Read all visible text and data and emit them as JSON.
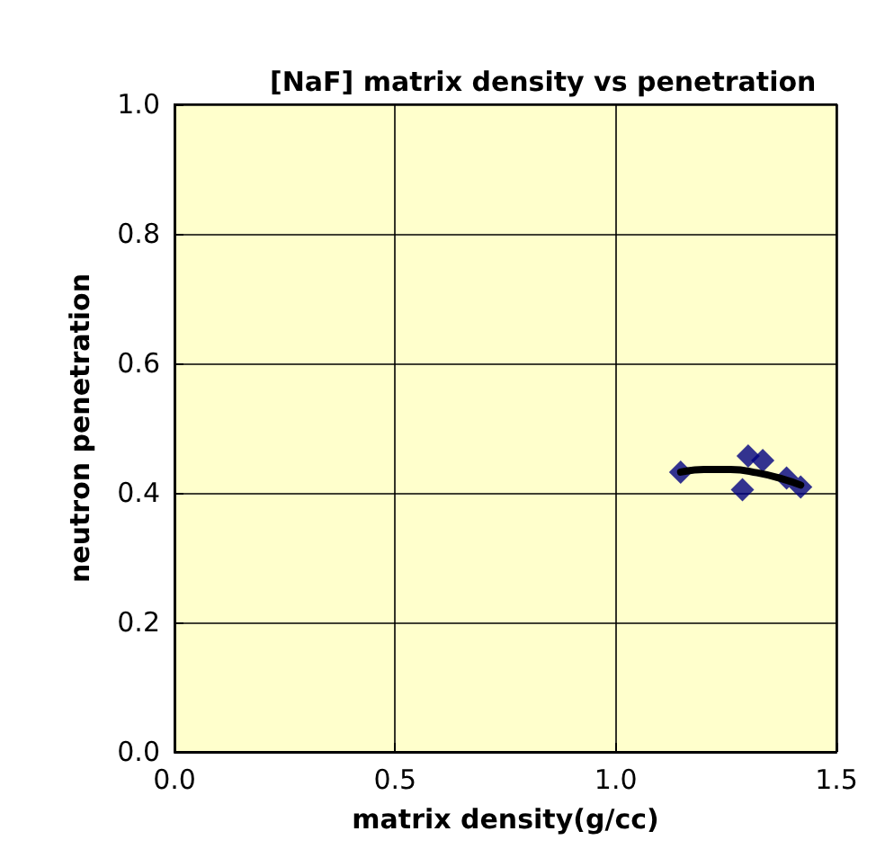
{
  "chart_data": {
    "type": "scatter",
    "title": "[NaF] matrix density vs penetration",
    "xlabel": "matrix density(g/cc)",
    "ylabel": "neutron penetration",
    "xlim": [
      0,
      1.5
    ],
    "xticks": [
      {
        "value": 0,
        "label": "0.0"
      },
      {
        "value": 0.5,
        "label": "0.5"
      },
      {
        "value": 1,
        "label": "1.0"
      },
      {
        "value": 1.5,
        "label": "1.5"
      }
    ],
    "ylim": [
      0,
      1
    ],
    "yticks": [
      {
        "value": 0,
        "label": "0.0"
      },
      {
        "value": 0.2,
        "label": "0.2"
      },
      {
        "value": 0.4,
        "label": "0.4"
      },
      {
        "value": 0.6,
        "label": "0.6"
      },
      {
        "value": 0.8,
        "label": "0.8"
      },
      {
        "value": 1,
        "label": "1.0"
      }
    ],
    "grid": true,
    "marker": "diamond",
    "series": [
      {
        "color": "#000080",
        "x": [
          1.147,
          1.3,
          1.333,
          1.287,
          1.387,
          1.419
        ],
        "values": [
          0.432,
          0.457,
          0.45,
          0.405,
          0.423,
          0.409
        ]
      },
      {
        "type": "line",
        "color": "#000000",
        "marker": "none",
        "x": [
          1.147,
          1.2,
          1.26,
          1.32,
          1.38,
          1.419
        ],
        "values": [
          0.432,
          0.436,
          0.436,
          0.431,
          0.421,
          0.412
        ]
      }
    ]
  }
}
